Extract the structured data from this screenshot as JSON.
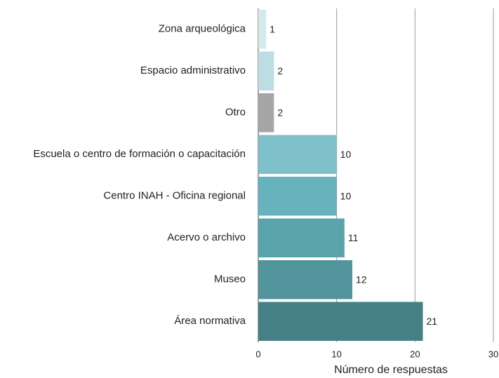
{
  "chart_data": {
    "type": "barh",
    "categories": [
      "Zona arqueológica",
      "Espacio administrativo",
      "Otro",
      "Escuela o centro de formación o capacitación",
      "Centro INAH - Oficina regional",
      "Acervo o archivo",
      "Museo",
      "Área normativa"
    ],
    "values": [
      1,
      2,
      2,
      10,
      10,
      11,
      12,
      21
    ],
    "colors": [
      "#d4e9ec",
      "#bcdde1",
      "#a6a6a6",
      "#7fc1ca",
      "#66b2bd",
      "#5aa3ab",
      "#52949b",
      "#467f86"
    ],
    "xlabel": "Número de respuestas",
    "xlim": [
      0,
      30
    ],
    "xticks": [
      0,
      10,
      20,
      30
    ],
    "grid": true
  }
}
